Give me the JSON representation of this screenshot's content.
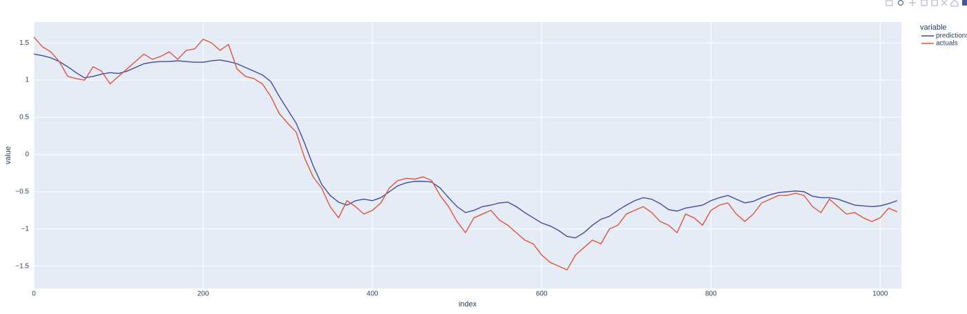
{
  "chart_data": {
    "type": "line",
    "xlabel": "index",
    "ylabel": "value",
    "legend_title": "variable",
    "legend": "right",
    "grid": true,
    "xlim": [
      0,
      1025
    ],
    "ylim": [
      -1.8,
      1.78
    ],
    "xticks": [
      0,
      200,
      400,
      600,
      800,
      1000
    ],
    "yticks": [
      {
        "value": -1.5,
        "label": "−1.5"
      },
      {
        "value": -1,
        "label": "−1"
      },
      {
        "value": -0.5,
        "label": "−0.5"
      },
      0,
      0.5,
      1,
      1.5
    ],
    "x": [
      0,
      10,
      20,
      30,
      40,
      50,
      60,
      70,
      80,
      90,
      100,
      110,
      120,
      130,
      140,
      150,
      160,
      170,
      180,
      190,
      200,
      210,
      220,
      230,
      240,
      250,
      260,
      270,
      280,
      290,
      300,
      310,
      320,
      330,
      340,
      350,
      360,
      370,
      380,
      390,
      400,
      410,
      420,
      430,
      440,
      450,
      460,
      470,
      480,
      490,
      500,
      510,
      520,
      530,
      540,
      550,
      560,
      570,
      580,
      590,
      600,
      610,
      620,
      630,
      640,
      650,
      660,
      670,
      680,
      690,
      700,
      710,
      720,
      730,
      740,
      750,
      760,
      770,
      780,
      790,
      800,
      810,
      820,
      830,
      840,
      850,
      860,
      870,
      880,
      890,
      900,
      910,
      920,
      930,
      940,
      950,
      960,
      970,
      980,
      990,
      1000,
      1010,
      1020
    ],
    "series": [
      {
        "name": "predictions",
        "color": "#3d4a9e",
        "values": [
          1.35,
          1.33,
          1.3,
          1.25,
          1.18,
          1.1,
          1.03,
          1.05,
          1.08,
          1.1,
          1.09,
          1.12,
          1.17,
          1.22,
          1.24,
          1.25,
          1.25,
          1.26,
          1.25,
          1.24,
          1.24,
          1.26,
          1.27,
          1.25,
          1.22,
          1.17,
          1.12,
          1.07,
          0.98,
          0.78,
          0.6,
          0.42,
          0.15,
          -0.15,
          -0.4,
          -0.55,
          -0.64,
          -0.68,
          -0.62,
          -0.6,
          -0.62,
          -0.58,
          -0.5,
          -0.42,
          -0.38,
          -0.36,
          -0.36,
          -0.37,
          -0.45,
          -0.58,
          -0.7,
          -0.78,
          -0.75,
          -0.7,
          -0.68,
          -0.65,
          -0.64,
          -0.7,
          -0.78,
          -0.85,
          -0.92,
          -0.96,
          -1.02,
          -1.1,
          -1.12,
          -1.05,
          -0.95,
          -0.87,
          -0.83,
          -0.75,
          -0.68,
          -0.62,
          -0.58,
          -0.6,
          -0.66,
          -0.74,
          -0.76,
          -0.72,
          -0.7,
          -0.68,
          -0.62,
          -0.58,
          -0.55,
          -0.6,
          -0.65,
          -0.63,
          -0.58,
          -0.54,
          -0.51,
          -0.5,
          -0.49,
          -0.5,
          -0.56,
          -0.58,
          -0.58,
          -0.6,
          -0.64,
          -0.68,
          -0.69,
          -0.7,
          -0.69,
          -0.66,
          -0.62
        ]
      },
      {
        "name": "actuals",
        "color": "#e0533a",
        "values": [
          1.58,
          1.45,
          1.38,
          1.25,
          1.05,
          1.02,
          1.0,
          1.18,
          1.12,
          0.95,
          1.05,
          1.15,
          1.25,
          1.35,
          1.28,
          1.32,
          1.38,
          1.28,
          1.4,
          1.42,
          1.55,
          1.5,
          1.4,
          1.48,
          1.15,
          1.05,
          1.02,
          0.95,
          0.78,
          0.55,
          0.42,
          0.3,
          -0.05,
          -0.3,
          -0.45,
          -0.7,
          -0.85,
          -0.62,
          -0.7,
          -0.8,
          -0.75,
          -0.65,
          -0.45,
          -0.35,
          -0.32,
          -0.33,
          -0.3,
          -0.35,
          -0.55,
          -0.7,
          -0.9,
          -1.05,
          -0.85,
          -0.8,
          -0.75,
          -0.88,
          -0.95,
          -1.05,
          -1.15,
          -1.2,
          -1.35,
          -1.45,
          -1.5,
          -1.55,
          -1.35,
          -1.25,
          -1.15,
          -1.2,
          -1.0,
          -0.95,
          -0.8,
          -0.75,
          -0.7,
          -0.78,
          -0.9,
          -0.95,
          -1.05,
          -0.8,
          -0.85,
          -0.95,
          -0.75,
          -0.68,
          -0.65,
          -0.8,
          -0.9,
          -0.8,
          -0.65,
          -0.6,
          -0.55,
          -0.55,
          -0.52,
          -0.55,
          -0.7,
          -0.78,
          -0.6,
          -0.7,
          -0.8,
          -0.78,
          -0.85,
          -0.9,
          -0.85,
          -0.72,
          -0.77
        ]
      }
    ]
  }
}
